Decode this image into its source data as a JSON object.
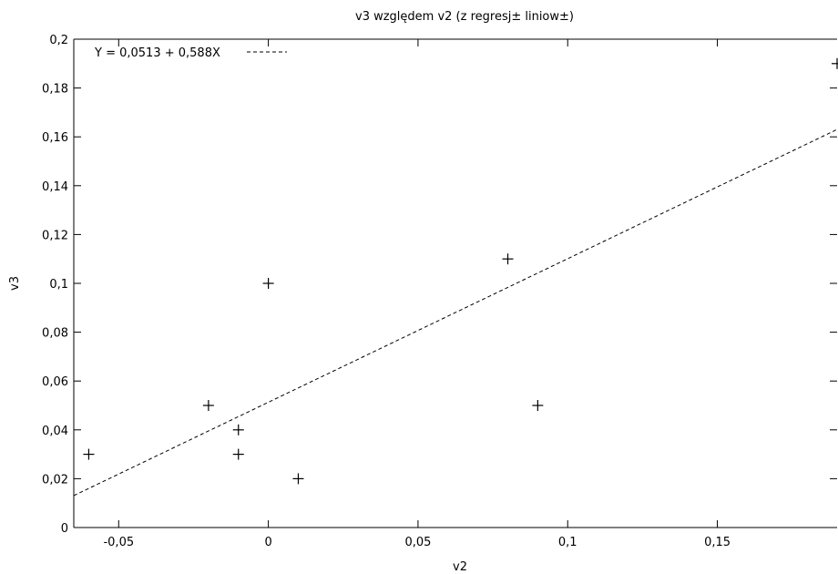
{
  "chart_data": {
    "type": "scatter",
    "title": "v3 względem v2 (z regresj± liniow±)",
    "xlabel": "v2",
    "ylabel": "v3",
    "xlim": [
      -0.065,
      0.19
    ],
    "ylim": [
      0,
      0.2
    ],
    "x_ticks": [
      {
        "value": -0.05,
        "label": "-0,05"
      },
      {
        "value": 0,
        "label": "0"
      },
      {
        "value": 0.05,
        "label": "0,05"
      },
      {
        "value": 0.1,
        "label": "0,1"
      },
      {
        "value": 0.15,
        "label": "0,15"
      }
    ],
    "y_ticks": [
      {
        "value": 0,
        "label": "0"
      },
      {
        "value": 0.02,
        "label": "0,02"
      },
      {
        "value": 0.04,
        "label": "0,04"
      },
      {
        "value": 0.06,
        "label": "0,06"
      },
      {
        "value": 0.08,
        "label": "0,08"
      },
      {
        "value": 0.1,
        "label": "0,1"
      },
      {
        "value": 0.12,
        "label": "0,12"
      },
      {
        "value": 0.14,
        "label": "0,14"
      },
      {
        "value": 0.16,
        "label": "0,16"
      },
      {
        "value": 0.18,
        "label": "0,18"
      },
      {
        "value": 0.2,
        "label": "0,2"
      }
    ],
    "points": [
      {
        "x": -0.06,
        "y": 0.03
      },
      {
        "x": -0.02,
        "y": 0.05
      },
      {
        "x": -0.01,
        "y": 0.04
      },
      {
        "x": -0.01,
        "y": 0.03
      },
      {
        "x": 0.0,
        "y": 0.1
      },
      {
        "x": 0.01,
        "y": 0.02
      },
      {
        "x": 0.08,
        "y": 0.11
      },
      {
        "x": 0.09,
        "y": 0.05
      },
      {
        "x": 0.19,
        "y": 0.19
      }
    ],
    "regression": {
      "intercept": 0.0513,
      "slope": 0.588,
      "label": "Y = 0,0513 + 0,588X"
    },
    "legend_position": "top-left",
    "grid": false
  }
}
